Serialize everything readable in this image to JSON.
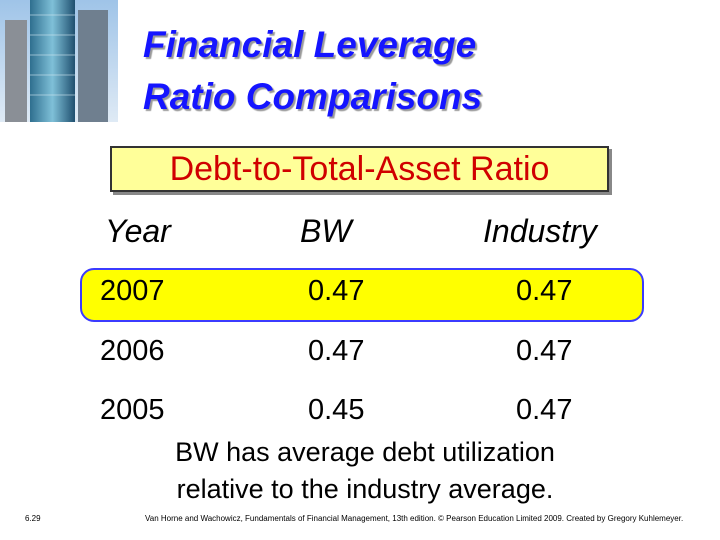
{
  "header": {
    "title_lines": [
      "Financial Leverage",
      "Ratio Comparisons"
    ]
  },
  "box_label": "Debt-to-Total-Asset Ratio",
  "table": {
    "columns": [
      "Year",
      "BW",
      "Industry"
    ],
    "rows": [
      [
        "2007",
        "0.47",
        "0.47"
      ],
      [
        "2006",
        "0.47",
        "0.47"
      ],
      [
        "2005",
        "0.45",
        "0.47"
      ]
    ]
  },
  "note_lines": [
    "BW has average debt utilization",
    "relative to the industry average."
  ],
  "slide_number": "6.29",
  "footer": "Van Horne and Wachowicz, Fundamentals of Financial Management, 13th edition. © Pearson Education Limited 2009. Created by Gregory Kuhlemeyer."
}
